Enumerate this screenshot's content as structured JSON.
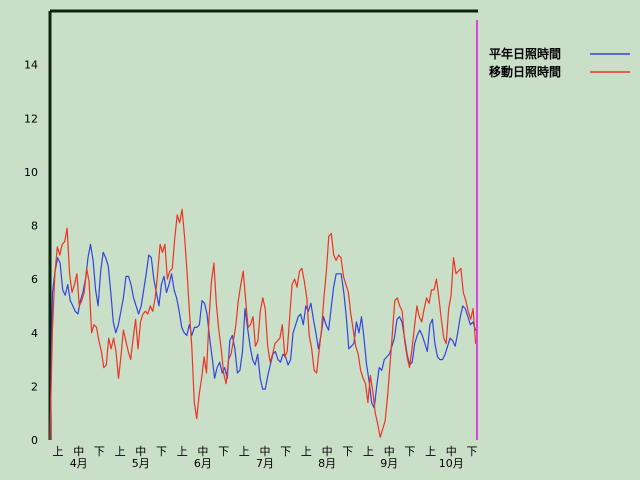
{
  "chart_data": {
    "type": "line",
    "ylim": [
      0,
      16
    ],
    "yticks": [
      0,
      2,
      4,
      6,
      8,
      10,
      12,
      14
    ],
    "x_sub_labels": [
      "上",
      "中",
      "下",
      "上",
      "中",
      "下",
      "上",
      "中",
      "下",
      "上",
      "中",
      "下",
      "上",
      "中",
      "下",
      "上",
      "中",
      "下",
      "上",
      "中",
      "下"
    ],
    "x_month_labels": [
      "4月",
      "5月",
      "6月",
      "7月",
      "8月",
      "9月",
      "10月"
    ],
    "legend": {
      "placement": "top-right"
    },
    "grid": false,
    "series": [
      {
        "name": "平年日照時間",
        "color": "#3344dd",
        "values": [
          0.0,
          5.5,
          6.3,
          6.8,
          6.6,
          5.6,
          5.4,
          5.8,
          5.2,
          5.0,
          4.8,
          4.7,
          5.2,
          5.5,
          6.0,
          6.8,
          7.3,
          6.7,
          5.6,
          5.0,
          6.3,
          7.0,
          6.8,
          6.5,
          5.5,
          4.4,
          4.0,
          4.3,
          4.8,
          5.3,
          6.1,
          6.1,
          5.8,
          5.3,
          5.0,
          4.7,
          5.0,
          5.6,
          6.2,
          6.9,
          6.8,
          6.0,
          5.5,
          5.0,
          5.8,
          6.1,
          5.5,
          5.8,
          6.2,
          5.6,
          5.3,
          4.8,
          4.2,
          4.0,
          3.9,
          4.3,
          3.9,
          4.2,
          4.2,
          4.3,
          5.2,
          5.1,
          4.7,
          3.8,
          3.1,
          2.3,
          2.7,
          2.9,
          2.5,
          2.7,
          2.3,
          3.7,
          3.9,
          3.4,
          2.5,
          2.6,
          3.3,
          4.9,
          4.2,
          3.5,
          3.0,
          2.8,
          3.2,
          2.3,
          1.9,
          1.9,
          2.4,
          2.8,
          3.2,
          3.3,
          3.0,
          2.9,
          3.2,
          3.1,
          2.8,
          3.0,
          4.0,
          4.3,
          4.6,
          4.7,
          4.3,
          5.0,
          4.8,
          5.1,
          4.5,
          4.0,
          3.4,
          3.9,
          4.6,
          4.3,
          4.1,
          4.9,
          5.7,
          6.2,
          6.2,
          6.2,
          5.5,
          4.6,
          3.4,
          3.5,
          3.6,
          4.4,
          4.0,
          4.6,
          3.8,
          2.8,
          2.2,
          1.4,
          1.2,
          2.0,
          2.7,
          2.6,
          3.0,
          3.1,
          3.2,
          3.5,
          3.8,
          4.5,
          4.6,
          4.4,
          3.8,
          3.2,
          2.8,
          2.9,
          3.6,
          3.9,
          4.1,
          3.9,
          3.6,
          3.3,
          4.3,
          4.5,
          3.6,
          3.1,
          3.0,
          3.0,
          3.2,
          3.5,
          3.8,
          3.7,
          3.5,
          4.0,
          4.6,
          5.0,
          4.9,
          4.6,
          4.3,
          4.4,
          4.1,
          4.2
        ]
      },
      {
        "name": "移動日照時間",
        "color": "#ee3322",
        "values": [
          0.0,
          4.1,
          6.2,
          7.2,
          6.9,
          7.3,
          7.4,
          7.9,
          6.2,
          5.5,
          5.8,
          6.2,
          5.0,
          5.2,
          5.5,
          6.4,
          5.9,
          4.0,
          4.3,
          4.2,
          3.7,
          3.3,
          2.7,
          2.8,
          3.8,
          3.4,
          3.8,
          3.3,
          2.3,
          3.1,
          4.1,
          3.7,
          3.3,
          3.0,
          3.8,
          4.5,
          3.4,
          4.4,
          4.7,
          4.8,
          4.7,
          5.0,
          4.8,
          5.3,
          6.2,
          7.3,
          7.0,
          7.3,
          6.0,
          6.3,
          6.4,
          7.5,
          8.4,
          8.1,
          8.6,
          7.6,
          6.3,
          4.8,
          3.4,
          1.4,
          0.8,
          1.7,
          2.3,
          3.1,
          2.5,
          4.5,
          5.9,
          6.6,
          5.1,
          4.1,
          3.4,
          2.5,
          2.1,
          3.0,
          3.2,
          3.7,
          4.3,
          5.2,
          5.8,
          6.3,
          5.2,
          4.2,
          4.3,
          4.6,
          3.5,
          3.7,
          4.8,
          5.3,
          4.9,
          3.5,
          2.9,
          3.2,
          3.6,
          3.7,
          3.8,
          4.3,
          3.1,
          3.3,
          4.6,
          5.8,
          6.0,
          5.7,
          6.3,
          6.4,
          5.9,
          5.3,
          3.9,
          3.4,
          2.6,
          2.5,
          3.3,
          4.1,
          5.3,
          6.3,
          7.6,
          7.7,
          6.9,
          6.7,
          6.9,
          6.8,
          6.1,
          5.8,
          5.5,
          4.7,
          4.1,
          3.5,
          3.2,
          2.6,
          2.3,
          2.1,
          1.4,
          2.4,
          1.8,
          1.0,
          0.6,
          0.1,
          0.4,
          0.7,
          1.6,
          2.8,
          4.0,
          5.2,
          5.3,
          5.0,
          4.8,
          3.7,
          3.1,
          2.7,
          3.4,
          4.2,
          5.0,
          4.6,
          4.4,
          4.9,
          5.3,
          5.1,
          5.6,
          5.6,
          6.0,
          5.3,
          4.5,
          3.8,
          3.6,
          4.9,
          5.4,
          6.8,
          6.2,
          6.3,
          6.4,
          5.5,
          5.2,
          4.8,
          4.5,
          4.9,
          3.6,
          3.7
        ]
      }
    ]
  }
}
